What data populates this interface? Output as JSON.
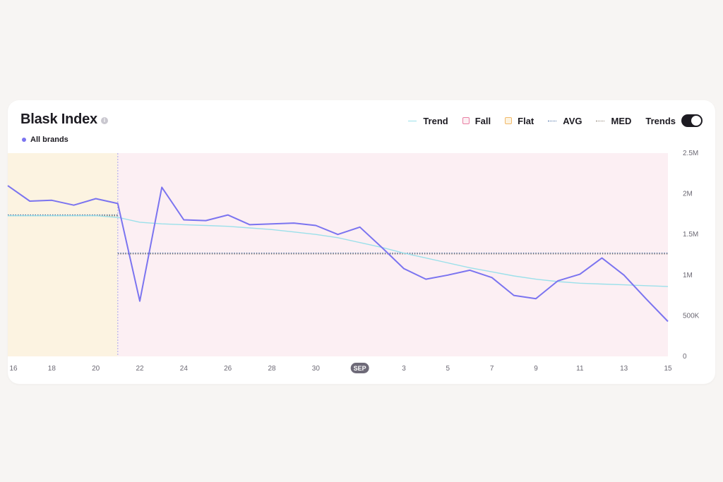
{
  "header": {
    "title": "Blask Index",
    "info_icon": "info-icon",
    "series_tag": "All brands"
  },
  "legend": {
    "trend": "Trend",
    "fall": "Fall",
    "flat": "Flat",
    "avg": "AVG",
    "med": "MED",
    "trends_toggle": "Trends",
    "trends_enabled": true
  },
  "colors": {
    "series": "#7b74f0",
    "trend": "#9be0ea",
    "fall_band": "#fcefF3",
    "flat_band": "#fcf3e1",
    "fall_border": "#e97fa3",
    "flat_border": "#f2b96a",
    "avg": "#4a6fa5",
    "med": "#8a7f70"
  },
  "chart_data": {
    "type": "line",
    "title": "Blask Index",
    "x_tick_labels": [
      "16",
      "18",
      "20",
      "22",
      "24",
      "26",
      "28",
      "30",
      "SEP",
      "3",
      "5",
      "7",
      "9",
      "11",
      "13",
      "15"
    ],
    "highlighted_tick": "SEP",
    "y_tick_labels": [
      "0",
      "500K",
      "1M",
      "1.5M",
      "2M",
      "2.5M"
    ],
    "ylim": [
      0,
      2500000
    ],
    "x": [
      "Aug 16",
      "Aug 17",
      "Aug 18",
      "Aug 19",
      "Aug 20",
      "Aug 21",
      "Aug 22",
      "Aug 23",
      "Aug 24",
      "Aug 25",
      "Aug 26",
      "Aug 27",
      "Aug 28",
      "Aug 29",
      "Aug 30",
      "Aug 31",
      "Sep 1",
      "Sep 2",
      "Sep 3",
      "Sep 4",
      "Sep 5",
      "Sep 6",
      "Sep 7",
      "Sep 8",
      "Sep 9",
      "Sep 10",
      "Sep 11",
      "Sep 12",
      "Sep 13",
      "Sep 14",
      "Sep 15"
    ],
    "series": [
      {
        "name": "All brands",
        "values": [
          2100000,
          1910000,
          1920000,
          1860000,
          1940000,
          1880000,
          680000,
          2080000,
          1680000,
          1670000,
          1740000,
          1620000,
          1630000,
          1640000,
          1610000,
          1500000,
          1590000,
          1340000,
          1080000,
          950000,
          1000000,
          1060000,
          970000,
          750000,
          710000,
          930000,
          1010000,
          1210000,
          1000000,
          710000,
          430000
        ]
      },
      {
        "name": "Trend",
        "values": [
          1730000,
          1730000,
          1730000,
          1730000,
          1730000,
          1710000,
          1650000,
          1630000,
          1620000,
          1610000,
          1600000,
          1580000,
          1560000,
          1530000,
          1500000,
          1460000,
          1400000,
          1340000,
          1270000,
          1210000,
          1150000,
          1090000,
          1040000,
          990000,
          950000,
          920000,
          900000,
          890000,
          880000,
          870000,
          860000
        ]
      }
    ],
    "bands": [
      {
        "type": "Flat",
        "from": "Aug 16",
        "to": "Aug 21"
      },
      {
        "type": "Fall",
        "from": "Aug 21",
        "to": "Sep 15"
      }
    ],
    "reference_lines": [
      {
        "name": "AVG",
        "segments": [
          {
            "from": "Aug 16",
            "to": "Aug 21",
            "value": 1740000
          },
          {
            "from": "Aug 21",
            "to": "Sep 15",
            "value": 1270000
          }
        ]
      },
      {
        "name": "MED",
        "segments": [
          {
            "from": "Aug 16",
            "to": "Aug 21",
            "value": 1730000
          },
          {
            "from": "Aug 21",
            "to": "Sep 15",
            "value": 1260000
          }
        ]
      }
    ],
    "grid": false,
    "legend_position": "top-right"
  }
}
